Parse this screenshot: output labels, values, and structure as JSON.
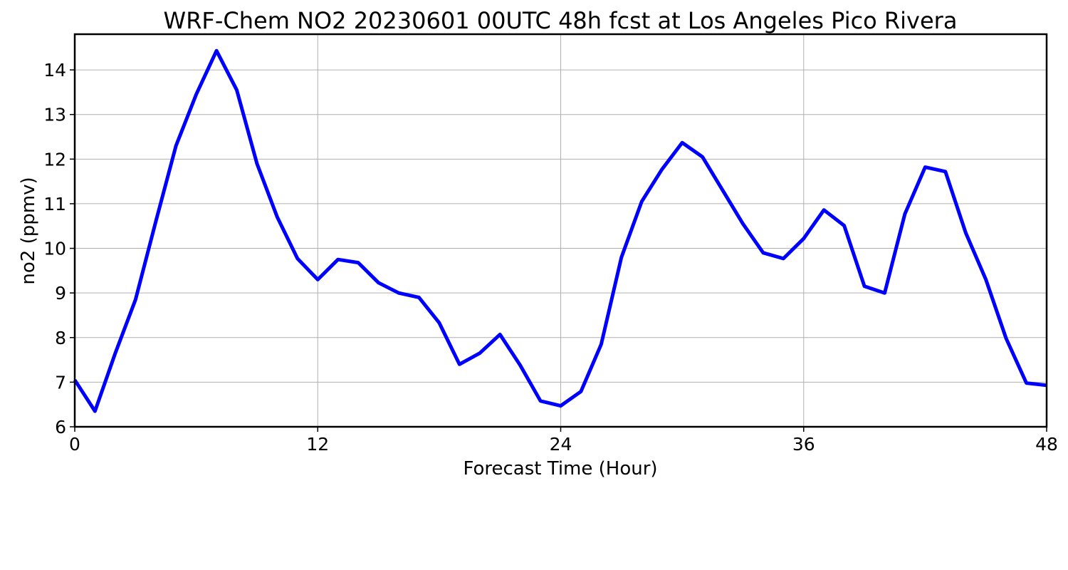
{
  "chart_data": {
    "type": "line",
    "title": "WRF-Chem NO2  20230601 00UTC 48h fcst at Los Angeles Pico Rivera",
    "xlabel": "Forecast Time (Hour)",
    "ylabel": "no2  (ppmv)",
    "xlim": [
      0,
      48
    ],
    "ylim": [
      6,
      14.8
    ],
    "x_ticks": [
      0,
      12,
      24,
      36,
      48
    ],
    "y_ticks": [
      6,
      7,
      8,
      9,
      10,
      11,
      12,
      13,
      14
    ],
    "grid": true,
    "series": [
      {
        "color": "#0000ff",
        "x": [
          0,
          1,
          2,
          3,
          4,
          5,
          6,
          7,
          8,
          9,
          10,
          11,
          12,
          13,
          14,
          15,
          16,
          17,
          18,
          19,
          20,
          21,
          22,
          23,
          24,
          25,
          26,
          27,
          28,
          29,
          30,
          31,
          32,
          33,
          34,
          35,
          36,
          37,
          38,
          39,
          40,
          41,
          42,
          43,
          44,
          45,
          46,
          47,
          48
        ],
        "values": [
          7.05,
          6.35,
          7.65,
          8.85,
          10.6,
          12.3,
          13.45,
          14.43,
          13.55,
          11.9,
          10.7,
          9.77,
          9.3,
          9.75,
          9.68,
          9.23,
          9.0,
          8.9,
          8.33,
          7.4,
          7.65,
          8.07,
          7.38,
          6.58,
          6.47,
          6.79,
          7.85,
          9.8,
          11.05,
          11.77,
          12.37,
          12.05,
          11.3,
          10.55,
          9.9,
          9.77,
          10.22,
          10.86,
          10.51,
          9.15,
          9.0,
          10.77,
          11.82,
          11.72,
          10.35,
          9.3,
          7.98,
          6.98,
          6.93
        ]
      }
    ]
  }
}
